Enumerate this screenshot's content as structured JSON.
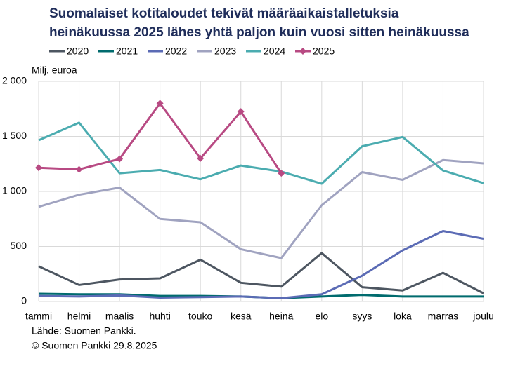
{
  "chart_data": {
    "type": "line",
    "title": [
      "Suomalaiset kotitaloudet tekivät määräaikaistalletuksia",
      "heinäkuussa 2025 lähes yhtä paljon kuin vuosi sitten heinäkuussa"
    ],
    "y_label": "Milj. euroa",
    "source": [
      "Lähde: Suomen Pankki.",
      "© Suomen Pankki 29.8.2025"
    ],
    "categories": [
      "tammi",
      "helmi",
      "maalis",
      "huhti",
      "touko",
      "kesä",
      "heinä",
      "elo",
      "syys",
      "loka",
      "marras",
      "joulu"
    ],
    "ylim": [
      0,
      2000
    ],
    "yticks": [
      0,
      500,
      {
        "value": 1000,
        "label": "1 000"
      },
      {
        "value": 1500,
        "label": "1 500"
      },
      {
        "value": 2000,
        "label": "2 000"
      }
    ],
    "grid": true,
    "legend": "top",
    "series": [
      {
        "name": "2020",
        "color": "#4d5661",
        "values": [
          320,
          150,
          200,
          210,
          380,
          170,
          135,
          440,
          130,
          100,
          260,
          75
        ]
      },
      {
        "name": "2021",
        "color": "#006b6e",
        "values": [
          70,
          65,
          65,
          50,
          50,
          45,
          30,
          45,
          60,
          45,
          45,
          45
        ]
      },
      {
        "name": "2022",
        "color": "#5b6bb5",
        "values": [
          50,
          45,
          55,
          35,
          40,
          45,
          30,
          65,
          235,
          465,
          640,
          570
        ]
      },
      {
        "name": "2023",
        "color": "#a0a3c0",
        "values": [
          860,
          970,
          1035,
          750,
          720,
          475,
          395,
          875,
          1175,
          1105,
          1285,
          1255
        ]
      },
      {
        "name": "2024",
        "color": "#4bacb0",
        "values": [
          1465,
          1625,
          1165,
          1195,
          1110,
          1235,
          1180,
          1070,
          1410,
          1495,
          1190,
          1075
        ]
      },
      {
        "name": "2025",
        "color": "#b84a83",
        "marker": "diamond",
        "values": [
          1215,
          1200,
          1295,
          1800,
          1300,
          1725,
          1165,
          null,
          null,
          null,
          null,
          null
        ]
      }
    ]
  }
}
